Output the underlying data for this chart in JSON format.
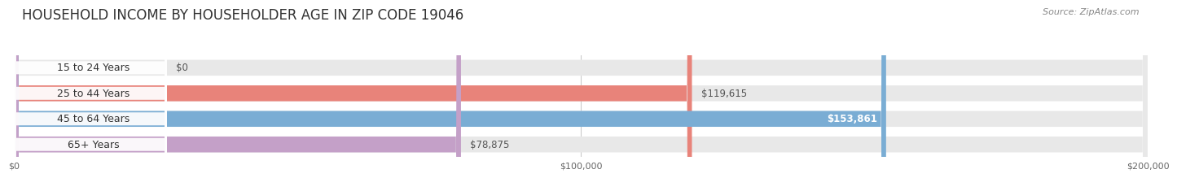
{
  "title": "HOUSEHOLD INCOME BY HOUSEHOLDER AGE IN ZIP CODE 19046",
  "source": "Source: ZipAtlas.com",
  "categories": [
    "15 to 24 Years",
    "25 to 44 Years",
    "45 to 64 Years",
    "65+ Years"
  ],
  "values": [
    0,
    119615,
    153861,
    78875
  ],
  "bar_colors": [
    "#f5c99a",
    "#e8837a",
    "#7aadd4",
    "#c4a0c8"
  ],
  "value_label_inside": [
    false,
    false,
    true,
    false
  ],
  "xlim": [
    0,
    200000
  ],
  "xtick_values": [
    0,
    100000,
    200000
  ],
  "xtick_labels": [
    "$0",
    "$100,000",
    "$200,000"
  ],
  "background_color": "#ffffff",
  "bar_background_color": "#e8e8e8",
  "title_fontsize": 12,
  "source_fontsize": 8,
  "value_fontsize": 8.5,
  "tick_fontsize": 8,
  "cat_fontsize": 9
}
